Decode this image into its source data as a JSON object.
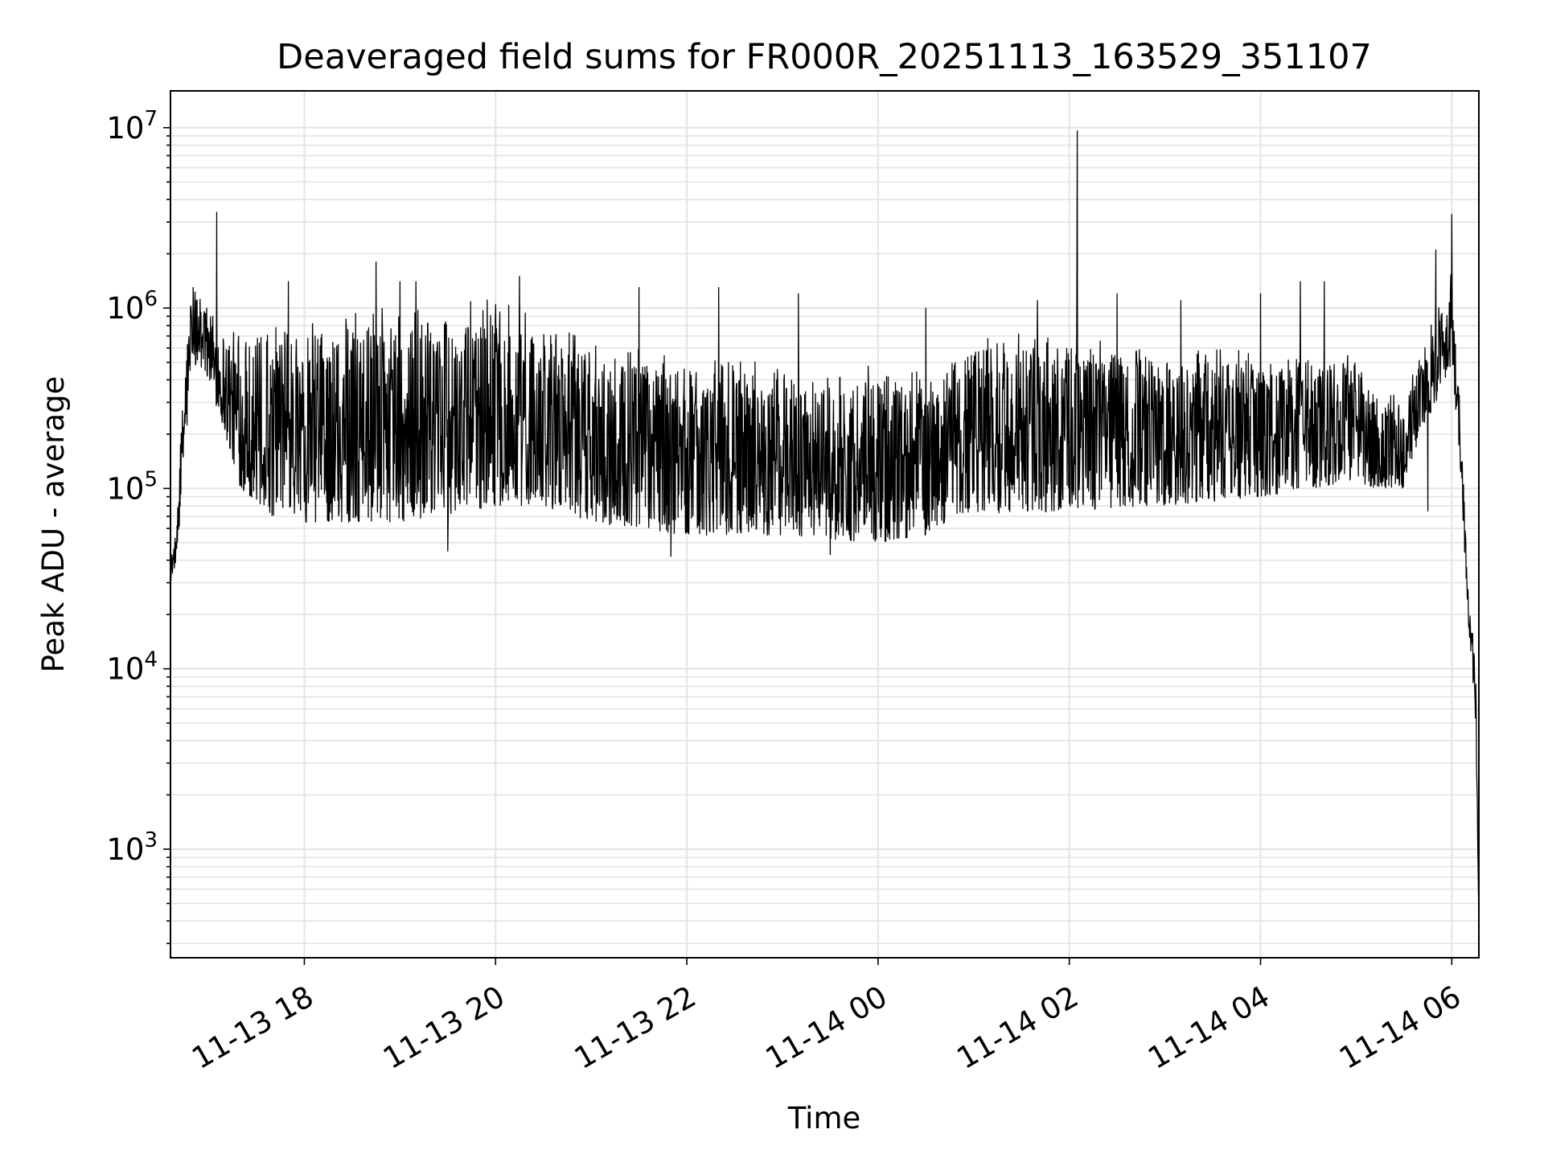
{
  "chart_data": {
    "type": "line",
    "title": "Deaveraged field sums for FR000R_20251113_163529_351107",
    "xlabel": "Time",
    "ylabel": "Peak ADU - average",
    "yscale": "log",
    "ylim": [
      250,
      16000000
    ],
    "xlim": [
      "11-13 16:36",
      "11-14 06:17"
    ],
    "grid": true,
    "line_color": "#000000",
    "grid_color": "#e3e3e3",
    "x_ticks": [
      {
        "t": "11-13 18:00",
        "label": "11-13 18"
      },
      {
        "t": "11-13 20:00",
        "label": "11-13 20"
      },
      {
        "t": "11-13 22:00",
        "label": "11-13 22"
      },
      {
        "t": "11-14 00:00",
        "label": "11-14 00"
      },
      {
        "t": "11-14 02:00",
        "label": "11-14 02"
      },
      {
        "t": "11-14 04:00",
        "label": "11-14 04"
      },
      {
        "t": "11-14 06:00",
        "label": "11-14 06"
      }
    ],
    "y_ticks": [
      {
        "value": 1000,
        "base": "10",
        "exp": "3"
      },
      {
        "value": 10000,
        "base": "10",
        "exp": "4"
      },
      {
        "value": 100000,
        "base": "10",
        "exp": "5"
      },
      {
        "value": 1000000,
        "base": "10",
        "exp": "6"
      },
      {
        "value": 10000000,
        "base": "10",
        "exp": "7"
      }
    ],
    "series": [
      {
        "style": "noise_band",
        "baseline": [
          {
            "t": "11-13 16:36",
            "low": 30000,
            "high": 40000
          },
          {
            "t": "11-13 16:40",
            "low": 40000,
            "high": 60000
          },
          {
            "t": "11-13 16:45",
            "low": 150000,
            "high": 600000
          },
          {
            "t": "11-13 16:50",
            "low": 500000,
            "high": 1300000
          },
          {
            "t": "11-13 17:00",
            "low": 400000,
            "high": 1000000
          },
          {
            "t": "11-13 17:10",
            "low": 200000,
            "high": 800000
          },
          {
            "t": "11-13 17:20",
            "low": 100000,
            "high": 700000
          },
          {
            "t": "11-13 17:40",
            "low": 70000,
            "high": 700000
          },
          {
            "t": "11-13 18:00",
            "low": 65000,
            "high": 700000
          },
          {
            "t": "11-13 19:00",
            "low": 65000,
            "high": 800000
          },
          {
            "t": "11-13 20:00",
            "low": 80000,
            "high": 900000
          },
          {
            "t": "11-13 20:30",
            "low": 80000,
            "high": 700000
          },
          {
            "t": "11-13 21:00",
            "low": 65000,
            "high": 550000
          },
          {
            "t": "11-13 22:00",
            "low": 55000,
            "high": 450000
          },
          {
            "t": "11-13 23:00",
            "low": 55000,
            "high": 400000
          },
          {
            "t": "11-14 00:00",
            "low": 50000,
            "high": 400000
          },
          {
            "t": "11-14 00:30",
            "low": 55000,
            "high": 400000
          },
          {
            "t": "11-14 01:00",
            "low": 70000,
            "high": 600000
          },
          {
            "t": "11-14 02:00",
            "low": 75000,
            "high": 600000
          },
          {
            "t": "11-14 03:00",
            "low": 80000,
            "high": 500000
          },
          {
            "t": "11-14 04:00",
            "low": 90000,
            "high": 500000
          },
          {
            "t": "11-14 05:00",
            "low": 110000,
            "high": 500000
          },
          {
            "t": "11-14 05:10",
            "low": 100000,
            "high": 300000
          },
          {
            "t": "11-14 05:30",
            "low": 100000,
            "high": 300000
          },
          {
            "t": "11-14 05:40",
            "low": 200000,
            "high": 500000
          },
          {
            "t": "11-14 05:50",
            "low": 300000,
            "high": 900000
          },
          {
            "t": "11-14 06:00",
            "low": 500000,
            "high": 1500000
          },
          {
            "t": "11-14 06:05",
            "low": 150000,
            "high": 300000
          },
          {
            "t": "11-14 06:10",
            "low": 20000,
            "high": 30000
          },
          {
            "t": "11-14 06:15",
            "low": 5000,
            "high": 10000
          },
          {
            "t": "11-14 06:17",
            "low": 400,
            "high": 400
          }
        ],
        "spikes": [
          {
            "t": "11-13 17:05",
            "value": 3400000
          },
          {
            "t": "11-13 17:50",
            "value": 1400000
          },
          {
            "t": "11-13 18:45",
            "value": 1800000
          },
          {
            "t": "11-13 19:00",
            "value": 1400000
          },
          {
            "t": "11-13 19:10",
            "value": 1400000
          },
          {
            "t": "11-13 20:15",
            "value": 1500000
          },
          {
            "t": "11-13 21:30",
            "value": 1300000
          },
          {
            "t": "11-13 22:20",
            "value": 1300000
          },
          {
            "t": "11-13 23:10",
            "value": 1200000
          },
          {
            "t": "11-14 00:30",
            "value": 1000000
          },
          {
            "t": "11-14 01:40",
            "value": 1100000
          },
          {
            "t": "11-14 02:05",
            "value": 9600000
          },
          {
            "t": "11-14 02:30",
            "value": 1200000
          },
          {
            "t": "11-14 03:10",
            "value": 1100000
          },
          {
            "t": "11-14 04:00",
            "value": 1200000
          },
          {
            "t": "11-14 04:25",
            "value": 1400000
          },
          {
            "t": "11-14 04:40",
            "value": 1400000
          },
          {
            "t": "11-14 05:50",
            "value": 2100000
          },
          {
            "t": "11-14 06:00",
            "value": 3300000
          }
        ],
        "dips": [
          {
            "t": "11-13 19:30",
            "value": 45000
          },
          {
            "t": "11-13 21:50",
            "value": 42000
          },
          {
            "t": "11-13 23:30",
            "value": 43000
          },
          {
            "t": "11-14 05:45",
            "value": 75000
          }
        ]
      }
    ]
  }
}
